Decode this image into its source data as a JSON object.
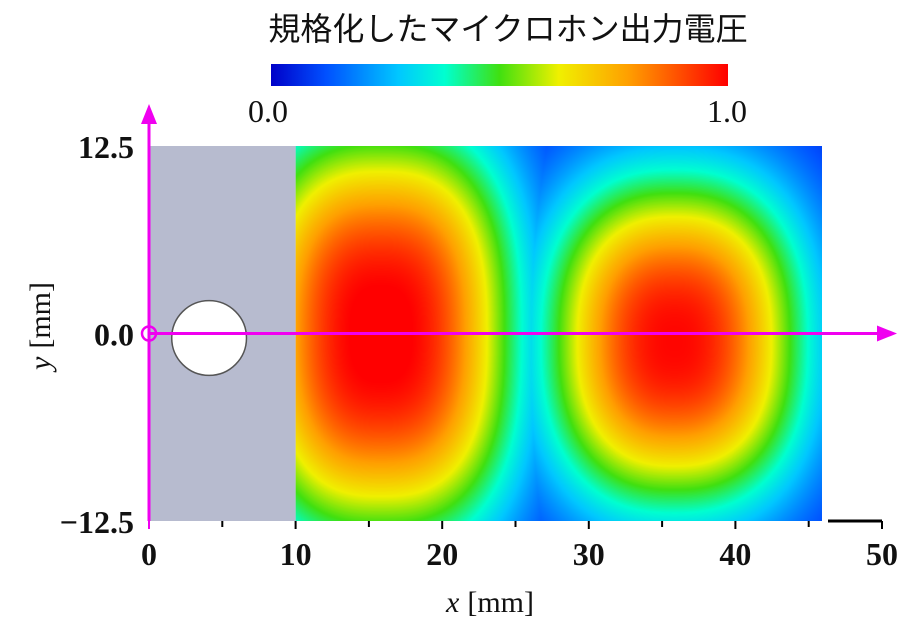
{
  "chart_data": {
    "type": "heatmap",
    "title": "規格化したマイクロホン出力電圧",
    "xlabel_var": "x",
    "xlabel_unit": "[mm]",
    "ylabel_var": "y",
    "ylabel_unit": "[mm]",
    "xlim": [
      0,
      50
    ],
    "ylim": [
      -12.5,
      12.5
    ],
    "x_ticks": [
      "0",
      "10",
      "20",
      "30",
      "40",
      "50"
    ],
    "y_ticks": [
      "12.5",
      "0.0",
      "−12.5"
    ],
    "colorbar": {
      "min": 0.0,
      "max": 1.0,
      "min_label": "0.0",
      "max_label": "1.0",
      "colormap": "jet"
    },
    "measured_region": {
      "x": [
        10,
        46
      ],
      "y": [
        -12.5,
        12.5
      ]
    },
    "excluded_region": {
      "x": [
        0,
        10
      ],
      "y": [
        -12.5,
        12.5
      ],
      "color": "#b7bbcf"
    },
    "hole": {
      "center_x": 4.1,
      "center_y": -0.3,
      "radius": 2.5
    },
    "field_peaks": [
      {
        "x": 15.5,
        "y": 5.0,
        "value": 1.0
      },
      {
        "x": 16.0,
        "y": -5.0,
        "value": 0.97
      },
      {
        "x": 35.5,
        "y": -1.0,
        "value": 0.95
      }
    ],
    "axis_color": "#f000f0"
  }
}
